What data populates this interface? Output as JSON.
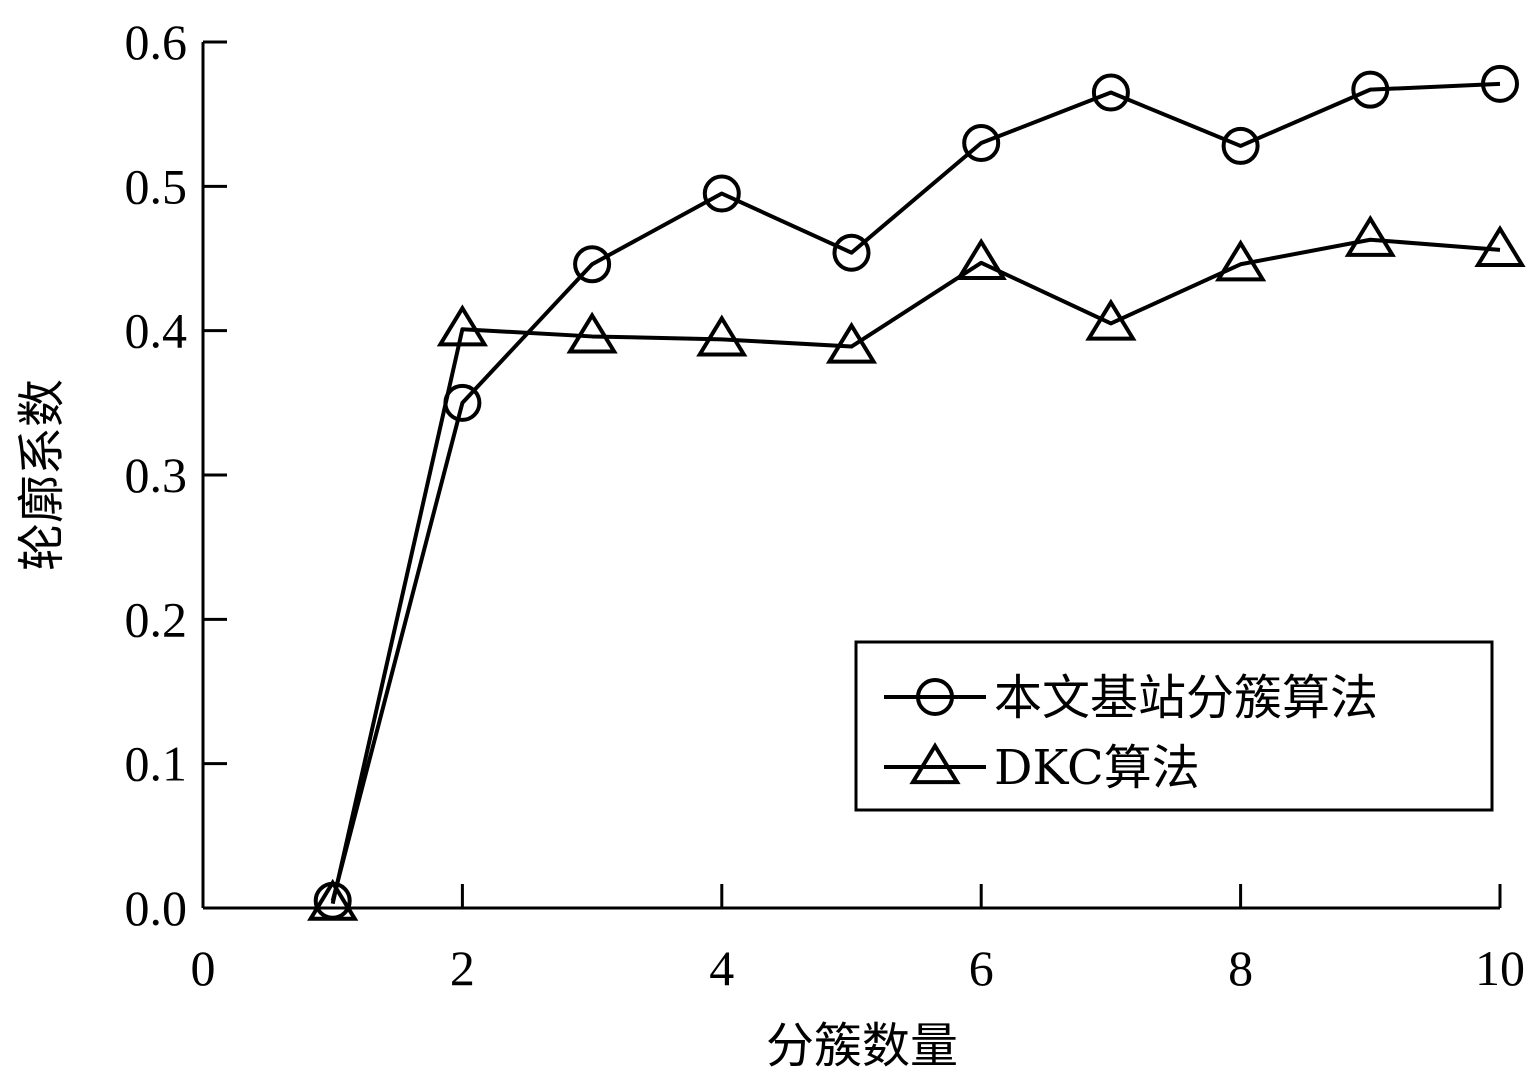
{
  "chart_data": {
    "type": "line",
    "xlabel": "分簇数量",
    "ylabel": "轮廓系数",
    "xlim": [
      0,
      10
    ],
    "ylim": [
      0,
      0.6
    ],
    "xticks": [
      0,
      2,
      4,
      6,
      8,
      10
    ],
    "yticks": [
      0.0,
      0.1,
      0.2,
      0.3,
      0.4,
      0.5,
      0.6
    ],
    "ytick_labels": [
      "0.0",
      "0.1",
      "0.2",
      "0.3",
      "0.4",
      "0.5",
      "0.6"
    ],
    "grid": false,
    "legend_position": "bottom-right",
    "series": [
      {
        "name": "本文基站分簇算法",
        "marker": "circle",
        "x": [
          1,
          2,
          3,
          4,
          5,
          6,
          7,
          8,
          9,
          10
        ],
        "values": [
          0.005,
          0.35,
          0.446,
          0.495,
          0.454,
          0.53,
          0.565,
          0.528,
          0.567,
          0.571
        ]
      },
      {
        "name": "DKC算法",
        "marker": "triangle",
        "x": [
          1,
          2,
          3,
          4,
          5,
          6,
          7,
          8,
          9,
          10
        ],
        "values": [
          0.003,
          0.401,
          0.396,
          0.394,
          0.389,
          0.447,
          0.405,
          0.446,
          0.463,
          0.456
        ]
      }
    ]
  },
  "colors": {
    "line": "#000000",
    "background": "#ffffff"
  }
}
